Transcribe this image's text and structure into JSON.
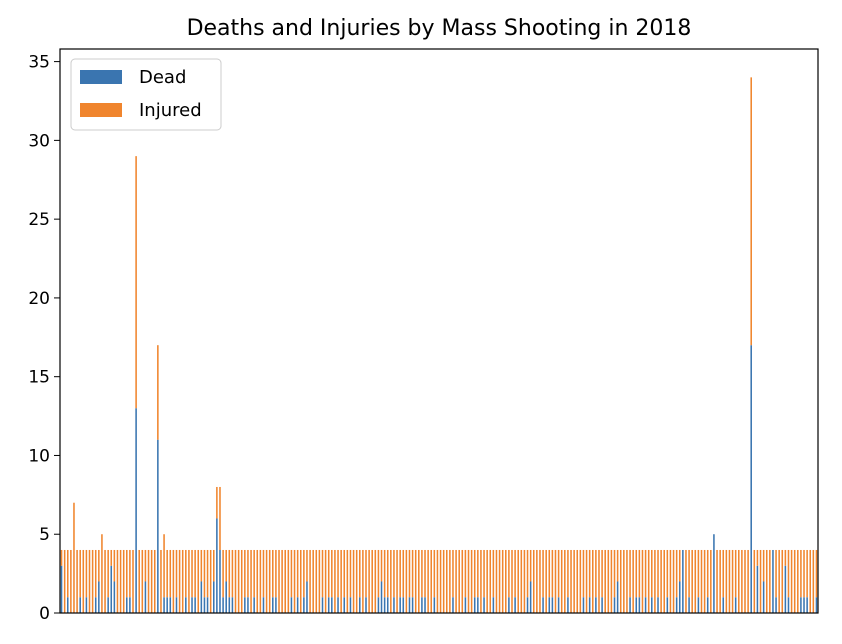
{
  "chart_data": {
    "type": "bar",
    "stacked": true,
    "title": "Deaths and Injuries by Mass Shooting in 2018",
    "xlabel": "",
    "ylabel": "",
    "ylim": [
      0,
      35.8
    ],
    "yticks": [
      0,
      5,
      10,
      15,
      20,
      25,
      30,
      35
    ],
    "ytick_labels": [
      "0",
      "5",
      "10",
      "15",
      "20",
      "25",
      "30",
      "35"
    ],
    "legend_position": "upper-left",
    "series": [
      {
        "name": "Dead",
        "color": "#3a75b0",
        "values": [
          3,
          0,
          1,
          0,
          0,
          0,
          1,
          0,
          1,
          0,
          0,
          1,
          2,
          0,
          0,
          1,
          3,
          2,
          0,
          0,
          0,
          1,
          1,
          0,
          13,
          0,
          0,
          2,
          0,
          0,
          0,
          11,
          0,
          1,
          1,
          1,
          0,
          1,
          0,
          0,
          1,
          0,
          1,
          1,
          0,
          2,
          1,
          1,
          0,
          2,
          6,
          4,
          1,
          2,
          1,
          1,
          0,
          0,
          0,
          1,
          1,
          0,
          1,
          0,
          0,
          1,
          0,
          0,
          1,
          1,
          0,
          0,
          0,
          0,
          1,
          0,
          1,
          0,
          1,
          2,
          0,
          0,
          0,
          0,
          1,
          0,
          1,
          1,
          0,
          1,
          0,
          1,
          0,
          1,
          0,
          0,
          1,
          0,
          1,
          0,
          0,
          0,
          1,
          2,
          1,
          1,
          0,
          1,
          0,
          1,
          1,
          0,
          1,
          1,
          0,
          0,
          1,
          1,
          0,
          0,
          1,
          0,
          0,
          0,
          0,
          0,
          1,
          0,
          0,
          0,
          1,
          0,
          0,
          1,
          1,
          0,
          1,
          0,
          0,
          1,
          0,
          0,
          0,
          0,
          1,
          0,
          1,
          0,
          0,
          0,
          1,
          2,
          0,
          0,
          0,
          1,
          0,
          1,
          1,
          0,
          1,
          0,
          0,
          1,
          0,
          0,
          0,
          0,
          1,
          0,
          1,
          0,
          1,
          0,
          1,
          0,
          0,
          0,
          1,
          2,
          0,
          0,
          0,
          1,
          0,
          1,
          1,
          0,
          1,
          0,
          1,
          0,
          1,
          0,
          0,
          1,
          0,
          0,
          1,
          2,
          4,
          0,
          1,
          0,
          0,
          1,
          0,
          0,
          1,
          0,
          5,
          0,
          0,
          1,
          0,
          0,
          0,
          1,
          0,
          0,
          0,
          0,
          17,
          0,
          3,
          0,
          2,
          0,
          0,
          4,
          1,
          0,
          0,
          3,
          1,
          0,
          0,
          0,
          1,
          1,
          1,
          0,
          0,
          1
        ],
        "display_max": 35
      },
      {
        "name": "Injured",
        "color": "#f0852d",
        "values": [
          1,
          4,
          3,
          4,
          7,
          4,
          3,
          4,
          3,
          4,
          4,
          3,
          2,
          5,
          4,
          3,
          1,
          2,
          4,
          4,
          4,
          3,
          3,
          4,
          16,
          4,
          4,
          2,
          4,
          4,
          4,
          6,
          4,
          4,
          3,
          3,
          4,
          3,
          4,
          4,
          3,
          4,
          3,
          3,
          4,
          2,
          3,
          3,
          4,
          2,
          2,
          4,
          3,
          2,
          3,
          3,
          4,
          4,
          4,
          3,
          3,
          4,
          3,
          4,
          4,
          3,
          4,
          4,
          3,
          3,
          4,
          4,
          4,
          4,
          3,
          4,
          3,
          4,
          3,
          2,
          4,
          4,
          4,
          4,
          3,
          4,
          3,
          3,
          4,
          3,
          4,
          3,
          4,
          3,
          4,
          4,
          3,
          4,
          3,
          4,
          4,
          4,
          3,
          2,
          3,
          3,
          4,
          3,
          4,
          3,
          3,
          4,
          3,
          3,
          4,
          4,
          3,
          3,
          4,
          4,
          3,
          4,
          4,
          4,
          4,
          4,
          3,
          4,
          4,
          4,
          3,
          4,
          4,
          3,
          3,
          4,
          3,
          4,
          4,
          3,
          4,
          4,
          4,
          4,
          3,
          4,
          3,
          4,
          4,
          4,
          3,
          2,
          4,
          4,
          4,
          3,
          4,
          3,
          3,
          4,
          3,
          4,
          4,
          3,
          4,
          4,
          4,
          4,
          3,
          4,
          3,
          4,
          3,
          4,
          3,
          4,
          4,
          4,
          3,
          2,
          4,
          4,
          4,
          3,
          4,
          3,
          3,
          4,
          3,
          4,
          3,
          4,
          3,
          4,
          4,
          3,
          4,
          4,
          3,
          2,
          0,
          4,
          3,
          4,
          4,
          3,
          4,
          4,
          3,
          4,
          0,
          4,
          4,
          3,
          4,
          4,
          4,
          3,
          4,
          4,
          4,
          4,
          17,
          4,
          1,
          4,
          2,
          4,
          4,
          0,
          3,
          4,
          4,
          1,
          3,
          4,
          4,
          4,
          3,
          3,
          3,
          4,
          4,
          3
        ]
      }
    ]
  }
}
